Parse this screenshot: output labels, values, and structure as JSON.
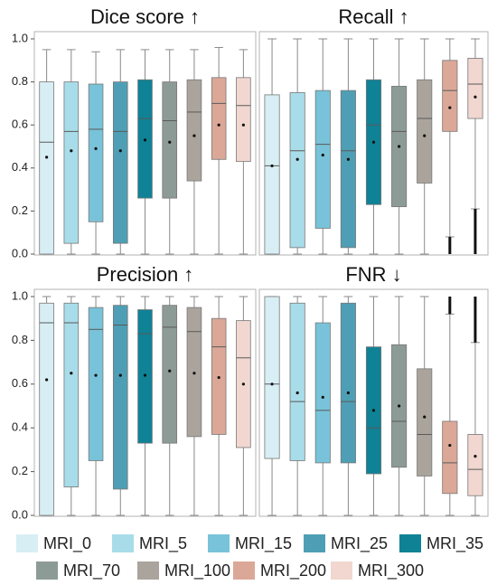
{
  "chart_data": [
    {
      "type": "box",
      "title": "Dice score ↑",
      "ylim": [
        0,
        1.0
      ],
      "yticks": [
        "0.0",
        "0.2",
        "0.4",
        "0.6",
        "0.8",
        "1.0"
      ],
      "series": [
        {
          "name": "MRI_0",
          "whisker_low": 0.0,
          "q1": 0.0,
          "median": 0.52,
          "q3": 0.8,
          "whisker_high": 0.95,
          "mean": 0.45
        },
        {
          "name": "MRI_5",
          "whisker_low": 0.0,
          "q1": 0.05,
          "median": 0.57,
          "q3": 0.8,
          "whisker_high": 0.95,
          "mean": 0.48
        },
        {
          "name": "MRI_15",
          "whisker_low": 0.0,
          "q1": 0.15,
          "median": 0.58,
          "q3": 0.79,
          "whisker_high": 0.94,
          "mean": 0.49
        },
        {
          "name": "MRI_25",
          "whisker_low": 0.0,
          "q1": 0.05,
          "median": 0.57,
          "q3": 0.8,
          "whisker_high": 0.95,
          "mean": 0.48
        },
        {
          "name": "MRI_35",
          "whisker_low": 0.0,
          "q1": 0.26,
          "median": 0.63,
          "q3": 0.81,
          "whisker_high": 0.95,
          "mean": 0.53
        },
        {
          "name": "MRI_70",
          "whisker_low": 0.0,
          "q1": 0.26,
          "median": 0.62,
          "q3": 0.8,
          "whisker_high": 0.95,
          "mean": 0.52
        },
        {
          "name": "MRI_100",
          "whisker_low": 0.0,
          "q1": 0.34,
          "median": 0.66,
          "q3": 0.81,
          "whisker_high": 0.95,
          "mean": 0.55
        },
        {
          "name": "MRI_200",
          "whisker_low": 0.0,
          "q1": 0.44,
          "median": 0.7,
          "q3": 0.82,
          "whisker_high": 0.96,
          "mean": 0.6
        },
        {
          "name": "MRI_300",
          "whisker_low": 0.0,
          "q1": 0.43,
          "median": 0.69,
          "q3": 0.82,
          "whisker_high": 0.95,
          "mean": 0.6
        }
      ]
    },
    {
      "type": "box",
      "title": "Recall ↑",
      "ylim": [
        0,
        1.0
      ],
      "series": [
        {
          "name": "MRI_0",
          "whisker_low": 0.0,
          "q1": 0.0,
          "median": 0.41,
          "q3": 0.74,
          "whisker_high": 1.0,
          "mean": 0.41
        },
        {
          "name": "MRI_5",
          "whisker_low": 0.0,
          "q1": 0.03,
          "median": 0.48,
          "q3": 0.75,
          "whisker_high": 1.0,
          "mean": 0.44
        },
        {
          "name": "MRI_15",
          "whisker_low": 0.0,
          "q1": 0.12,
          "median": 0.51,
          "q3": 0.76,
          "whisker_high": 1.0,
          "mean": 0.46
        },
        {
          "name": "MRI_25",
          "whisker_low": 0.0,
          "q1": 0.03,
          "median": 0.48,
          "q3": 0.76,
          "whisker_high": 1.0,
          "mean": 0.44
        },
        {
          "name": "MRI_35",
          "whisker_low": 0.0,
          "q1": 0.23,
          "median": 0.6,
          "q3": 0.81,
          "whisker_high": 1.0,
          "mean": 0.52
        },
        {
          "name": "MRI_70",
          "whisker_low": 0.0,
          "q1": 0.22,
          "median": 0.57,
          "q3": 0.78,
          "whisker_high": 1.0,
          "mean": 0.5
        },
        {
          "name": "MRI_100",
          "whisker_low": 0.0,
          "q1": 0.33,
          "median": 0.63,
          "q3": 0.81,
          "whisker_high": 1.0,
          "mean": 0.55
        },
        {
          "name": "MRI_200",
          "whisker_low": 0.08,
          "q1": 0.57,
          "median": 0.76,
          "q3": 0.9,
          "whisker_high": 1.0,
          "mean": 0.68,
          "outlier_low": [
            0.0,
            0.08
          ]
        },
        {
          "name": "MRI_300",
          "whisker_low": 0.21,
          "q1": 0.63,
          "median": 0.79,
          "q3": 0.91,
          "whisker_high": 1.0,
          "mean": 0.73,
          "outlier_low": [
            0.0,
            0.21
          ]
        }
      ]
    },
    {
      "type": "box",
      "title": "Precision ↑",
      "ylim": [
        0,
        1.0
      ],
      "yticks": [
        "0.0",
        "0.2",
        "0.4",
        "0.6",
        "0.8",
        "1.0"
      ],
      "series": [
        {
          "name": "MRI_0",
          "whisker_low": 0.0,
          "q1": 0.0,
          "median": 0.88,
          "q3": 0.97,
          "whisker_high": 1.0,
          "mean": 0.62
        },
        {
          "name": "MRI_5",
          "whisker_low": 0.0,
          "q1": 0.13,
          "median": 0.88,
          "q3": 0.97,
          "whisker_high": 1.0,
          "mean": 0.65
        },
        {
          "name": "MRI_15",
          "whisker_low": 0.0,
          "q1": 0.25,
          "median": 0.85,
          "q3": 0.95,
          "whisker_high": 1.0,
          "mean": 0.64
        },
        {
          "name": "MRI_25",
          "whisker_low": 0.0,
          "q1": 0.12,
          "median": 0.87,
          "q3": 0.96,
          "whisker_high": 1.0,
          "mean": 0.64
        },
        {
          "name": "MRI_35",
          "whisker_low": 0.0,
          "q1": 0.33,
          "median": 0.83,
          "q3": 0.94,
          "whisker_high": 1.0,
          "mean": 0.64
        },
        {
          "name": "MRI_70",
          "whisker_low": 0.0,
          "q1": 0.33,
          "median": 0.86,
          "q3": 0.96,
          "whisker_high": 1.0,
          "mean": 0.66
        },
        {
          "name": "MRI_100",
          "whisker_low": 0.0,
          "q1": 0.36,
          "median": 0.84,
          "q3": 0.95,
          "whisker_high": 1.0,
          "mean": 0.65
        },
        {
          "name": "MRI_200",
          "whisker_low": 0.0,
          "q1": 0.37,
          "median": 0.77,
          "q3": 0.9,
          "whisker_high": 1.0,
          "mean": 0.63
        },
        {
          "name": "MRI_300",
          "whisker_low": 0.0,
          "q1": 0.31,
          "median": 0.72,
          "q3": 0.89,
          "whisker_high": 1.0,
          "mean": 0.6
        }
      ]
    },
    {
      "type": "box",
      "title": "FNR ↓",
      "ylim": [
        0,
        1.0
      ],
      "series": [
        {
          "name": "MRI_0",
          "whisker_low": 0.0,
          "q1": 0.26,
          "median": 0.6,
          "q3": 1.0,
          "whisker_high": 1.0,
          "mean": 0.6
        },
        {
          "name": "MRI_5",
          "whisker_low": 0.0,
          "q1": 0.25,
          "median": 0.52,
          "q3": 0.97,
          "whisker_high": 1.0,
          "mean": 0.56
        },
        {
          "name": "MRI_15",
          "whisker_low": 0.0,
          "q1": 0.24,
          "median": 0.48,
          "q3": 0.88,
          "whisker_high": 1.0,
          "mean": 0.54
        },
        {
          "name": "MRI_25",
          "whisker_low": 0.0,
          "q1": 0.24,
          "median": 0.52,
          "q3": 0.97,
          "whisker_high": 1.0,
          "mean": 0.56
        },
        {
          "name": "MRI_35",
          "whisker_low": 0.0,
          "q1": 0.19,
          "median": 0.4,
          "q3": 0.77,
          "whisker_high": 1.0,
          "mean": 0.48
        },
        {
          "name": "MRI_70",
          "whisker_low": 0.0,
          "q1": 0.22,
          "median": 0.43,
          "q3": 0.78,
          "whisker_high": 1.0,
          "mean": 0.5
        },
        {
          "name": "MRI_100",
          "whisker_low": 0.0,
          "q1": 0.18,
          "median": 0.37,
          "q3": 0.67,
          "whisker_high": 1.0,
          "mean": 0.45
        },
        {
          "name": "MRI_200",
          "whisker_low": 0.0,
          "q1": 0.1,
          "median": 0.24,
          "q3": 0.43,
          "whisker_high": 0.92,
          "mean": 0.32,
          "outlier_high": [
            0.92,
            1.0
          ]
        },
        {
          "name": "MRI_300",
          "whisker_low": 0.0,
          "q1": 0.09,
          "median": 0.21,
          "q3": 0.37,
          "whisker_high": 0.79,
          "mean": 0.27,
          "outlier_high": [
            0.79,
            1.0
          ]
        }
      ]
    }
  ],
  "legend": {
    "placement": "bottom",
    "items": [
      {
        "label": "MRI_0",
        "color": "#d7eef4"
      },
      {
        "label": "MRI_5",
        "color": "#a9dce9"
      },
      {
        "label": "MRI_15",
        "color": "#78c3d9"
      },
      {
        "label": "MRI_25",
        "color": "#4e9fb5"
      },
      {
        "label": "MRI_35",
        "color": "#0f8296"
      },
      {
        "label": "MRI_70",
        "color": "#8d9b96"
      },
      {
        "label": "MRI_100",
        "color": "#aaa49d"
      },
      {
        "label": "MRI_200",
        "color": "#dba898"
      },
      {
        "label": "MRI_300",
        "color": "#f1d7d0"
      }
    ]
  }
}
